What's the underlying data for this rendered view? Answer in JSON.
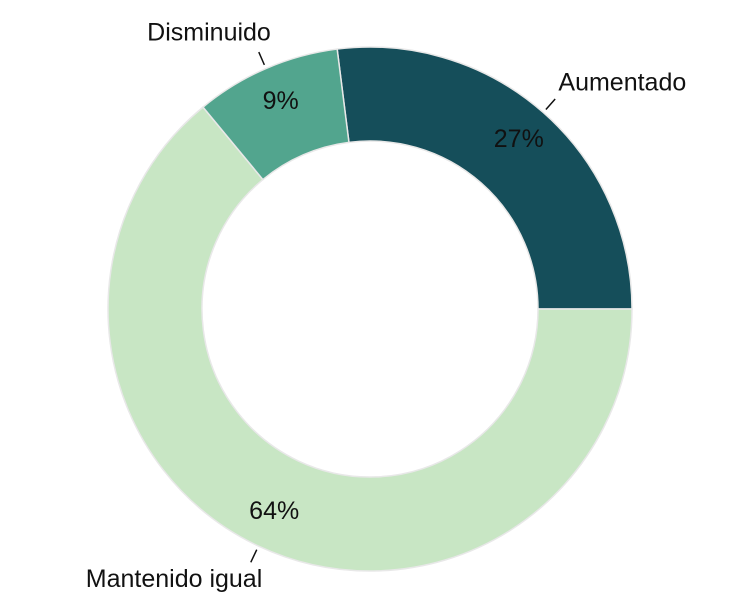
{
  "chart_data": {
    "type": "donut",
    "categories": [
      "Aumentado",
      "Mantenido igual",
      "Disminuido"
    ],
    "values": [
      27,
      64,
      9
    ],
    "value_labels": [
      "27%",
      "64%",
      "9%"
    ],
    "colors": [
      "#154e5a",
      "#c8e6c4",
      "#52a58e"
    ]
  }
}
